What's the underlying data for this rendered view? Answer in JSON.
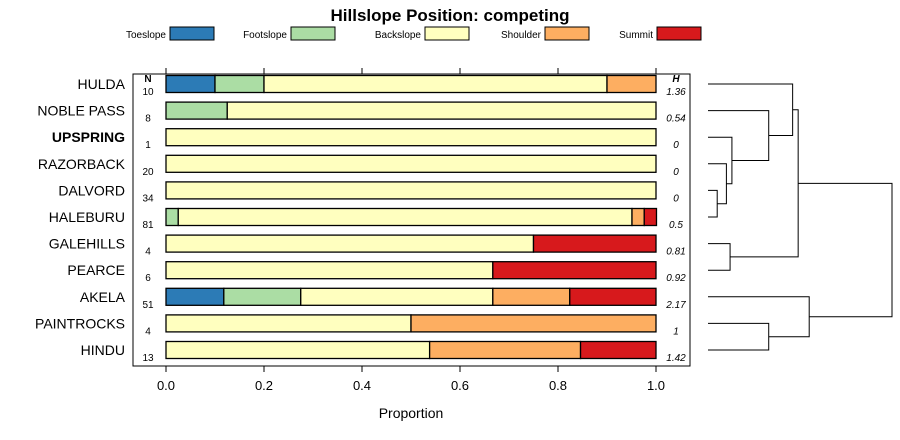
{
  "chart_data": {
    "type": "bar",
    "orientation": "horizontal",
    "stacked": true,
    "title": "Hillslope Position: competing",
    "xlabel": "Proportion",
    "xlim": [
      0,
      1
    ],
    "xticks": [
      0,
      0.2,
      0.4,
      0.6,
      0.8,
      1
    ],
    "xtick_labels": [
      "0.0",
      "0.2",
      "0.4",
      "0.6",
      "0.8",
      "1.0"
    ],
    "n_header": "N",
    "h_header": "H",
    "legend_position": "top",
    "series": [
      {
        "name": "Toeslope",
        "color": "#2c7bb6"
      },
      {
        "name": "Footslope",
        "color": "#abdda4"
      },
      {
        "name": "Backslope",
        "color": "#ffffbf"
      },
      {
        "name": "Shoulder",
        "color": "#fdae61"
      },
      {
        "name": "Summit",
        "color": "#d7191c"
      }
    ],
    "rows": [
      {
        "label": "HULDA",
        "n": "10",
        "h": "1.36",
        "bold": false,
        "values": [
          0.1,
          0.1,
          0.7,
          0.1,
          0
        ]
      },
      {
        "label": "NOBLE PASS",
        "n": "8",
        "h": "0.54",
        "bold": false,
        "values": [
          0,
          0.125,
          0.875,
          0,
          0
        ]
      },
      {
        "label": "UPSPRING",
        "n": "1",
        "h": "0",
        "bold": true,
        "values": [
          0,
          0,
          1,
          0,
          0
        ]
      },
      {
        "label": "RAZORBACK",
        "n": "20",
        "h": "0",
        "bold": false,
        "values": [
          0,
          0,
          1,
          0,
          0
        ]
      },
      {
        "label": "DALVORD",
        "n": "34",
        "h": "0",
        "bold": false,
        "values": [
          0,
          0,
          1,
          0,
          0
        ]
      },
      {
        "label": "HALEBURU",
        "n": "81",
        "h": "0.5",
        "bold": false,
        "values": [
          0,
          0.025,
          0.926,
          0.025,
          0.025
        ]
      },
      {
        "label": "GALEHILLS",
        "n": "4",
        "h": "0.81",
        "bold": false,
        "values": [
          0,
          0,
          0.75,
          0,
          0.25
        ]
      },
      {
        "label": "PEARCE",
        "n": "6",
        "h": "0.92",
        "bold": false,
        "values": [
          0,
          0,
          0.667,
          0,
          0.333
        ]
      },
      {
        "label": "AKELA",
        "n": "51",
        "h": "2.17",
        "bold": false,
        "values": [
          0.118,
          0.157,
          0.392,
          0.157,
          0.176
        ]
      },
      {
        "label": "PAINTROCKS",
        "n": "4",
        "h": "1",
        "bold": false,
        "values": [
          0,
          0,
          0.5,
          0.5,
          0
        ]
      },
      {
        "label": "HINDU",
        "n": "13",
        "h": "1.42",
        "bold": false,
        "values": [
          0,
          0,
          0.538,
          0.308,
          0.154
        ]
      }
    ],
    "dendrogram": {
      "max_height": 1,
      "merges": [
        {
          "a": 4,
          "b": 5,
          "h": 0.05
        },
        {
          "a": 3,
          "b": -1,
          "h": 0.1
        },
        {
          "a": 2,
          "b": -2,
          "h": 0.13
        },
        {
          "a": 1,
          "b": -3,
          "h": 0.33
        },
        {
          "a": 0,
          "b": -4,
          "h": 0.46
        },
        {
          "a": 6,
          "b": 7,
          "h": 0.12
        },
        {
          "a": -5,
          "b": -6,
          "h": 0.49
        },
        {
          "a": 9,
          "b": 10,
          "h": 0.33
        },
        {
          "a": 8,
          "b": -8,
          "h": 0.55
        },
        {
          "a": -7,
          "b": -9,
          "h": 1.0
        }
      ]
    }
  }
}
